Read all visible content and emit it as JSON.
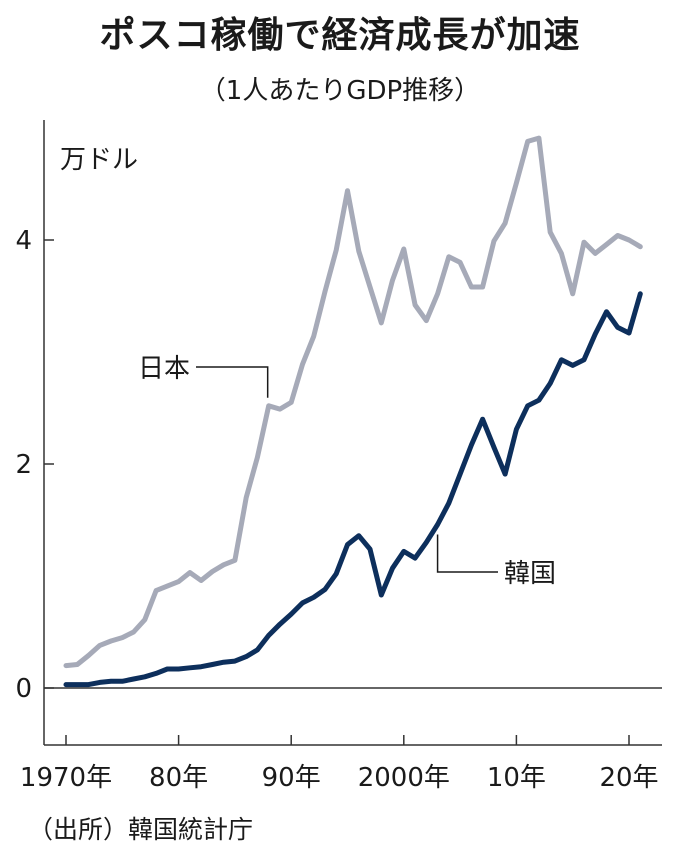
{
  "title": "ポスコ稼働で経済成長が加速",
  "subtitle": "（1人あたりGDP推移）",
  "source": "（出所）韓国統計庁",
  "colors": {
    "japan": "#a6aab8",
    "korea": "#0d2f5c",
    "axis": "#333333"
  },
  "chart_data": {
    "type": "line",
    "y_unit_label": "万ドル",
    "ylim": [
      -0.5,
      5.2
    ],
    "xlim": [
      1969.5,
      2021.5
    ],
    "y_ticks": [
      {
        "value": 0,
        "label": "0"
      },
      {
        "value": 2,
        "label": "2"
      },
      {
        "value": 4,
        "label": "4"
      }
    ],
    "x_ticks": [
      {
        "value": 1970,
        "label": "1970年"
      },
      {
        "value": 1980,
        "label": "80年"
      },
      {
        "value": 1990,
        "label": "90年"
      },
      {
        "value": 2000,
        "label": "2000年"
      },
      {
        "value": 2010,
        "label": "10年"
      },
      {
        "value": 2020,
        "label": "20年"
      }
    ],
    "series": [
      {
        "name": "日本",
        "key": "japan",
        "x": [
          1970,
          1971,
          1972,
          1973,
          1974,
          1975,
          1976,
          1977,
          1978,
          1979,
          1980,
          1981,
          1982,
          1983,
          1984,
          1985,
          1986,
          1987,
          1988,
          1989,
          1990,
          1991,
          1992,
          1993,
          1994,
          1995,
          1996,
          1997,
          1998,
          1999,
          2000,
          2001,
          2002,
          2003,
          2004,
          2005,
          2006,
          2007,
          2008,
          2009,
          2010,
          2011,
          2012,
          2013,
          2014,
          2015,
          2016,
          2017,
          2018,
          2019,
          2020,
          2021
        ],
        "values": [
          0.2,
          0.21,
          0.29,
          0.38,
          0.42,
          0.45,
          0.5,
          0.61,
          0.87,
          0.91,
          0.95,
          1.03,
          0.96,
          1.04,
          1.1,
          1.14,
          1.7,
          2.06,
          2.52,
          2.49,
          2.55,
          2.89,
          3.14,
          3.54,
          3.91,
          4.44,
          3.9,
          3.58,
          3.26,
          3.64,
          3.92,
          3.42,
          3.28,
          3.52,
          3.85,
          3.8,
          3.58,
          3.58,
          3.99,
          4.15,
          4.51,
          4.88,
          4.91,
          4.07,
          3.88,
          3.52,
          3.98,
          3.88,
          3.96,
          4.04,
          4.0,
          3.94
        ]
      },
      {
        "name": "韓国",
        "key": "korea",
        "x": [
          1970,
          1971,
          1972,
          1973,
          1974,
          1975,
          1976,
          1977,
          1978,
          1979,
          1980,
          1981,
          1982,
          1983,
          1984,
          1985,
          1986,
          1987,
          1988,
          1989,
          1990,
          1991,
          1992,
          1993,
          1994,
          1995,
          1996,
          1997,
          1998,
          1999,
          2000,
          2001,
          2002,
          2003,
          2004,
          2005,
          2006,
          2007,
          2008,
          2009,
          2010,
          2011,
          2012,
          2013,
          2014,
          2015,
          2016,
          2017,
          2018,
          2019,
          2020,
          2021
        ],
        "values": [
          0.03,
          0.03,
          0.03,
          0.05,
          0.06,
          0.06,
          0.08,
          0.1,
          0.13,
          0.17,
          0.17,
          0.18,
          0.19,
          0.21,
          0.23,
          0.24,
          0.28,
          0.34,
          0.47,
          0.57,
          0.66,
          0.76,
          0.81,
          0.88,
          1.02,
          1.28,
          1.36,
          1.24,
          0.83,
          1.07,
          1.22,
          1.16,
          1.3,
          1.46,
          1.65,
          1.91,
          2.17,
          2.4,
          2.15,
          1.91,
          2.31,
          2.52,
          2.57,
          2.72,
          2.93,
          2.88,
          2.93,
          3.16,
          3.36,
          3.22,
          3.17,
          3.52
        ]
      }
    ],
    "annotations": [
      {
        "text": "日本",
        "series": "japan",
        "x": 1988
      },
      {
        "text": "韓国",
        "series": "korea",
        "x": 2003
      }
    ]
  }
}
